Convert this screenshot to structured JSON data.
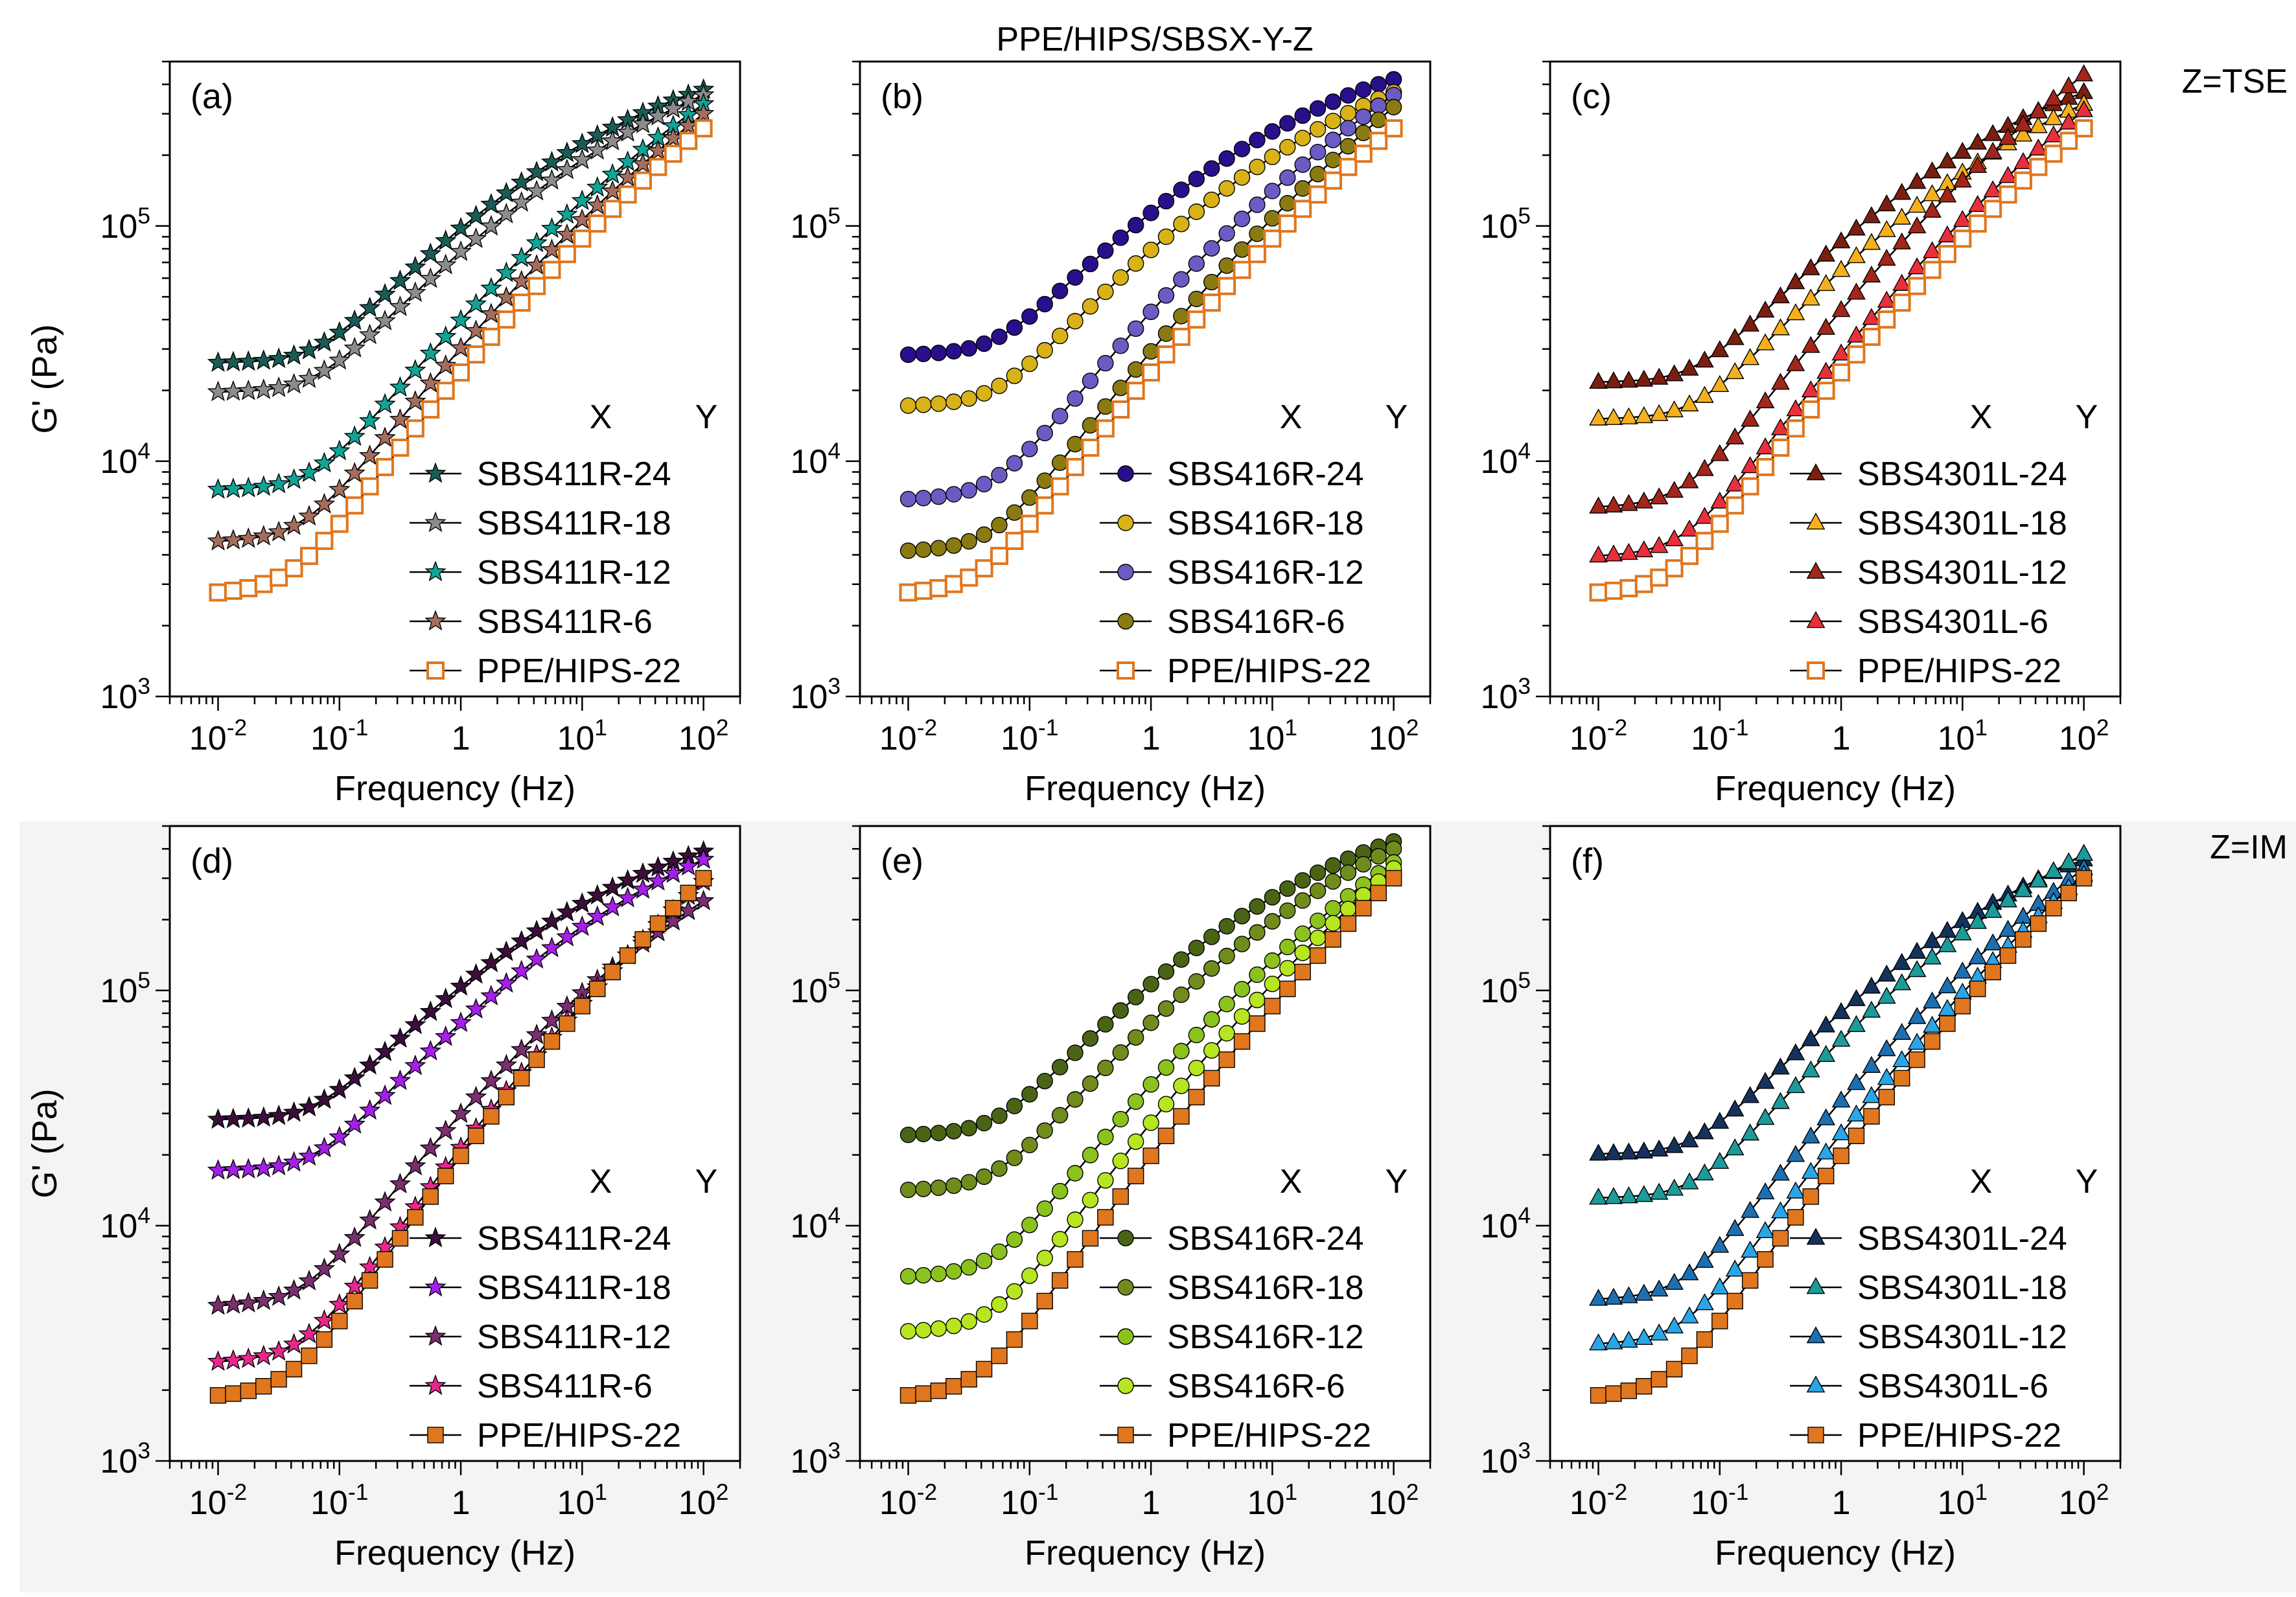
{
  "figure": {
    "title": "PPE/HIPS/SBSX-Y-Z",
    "row_labels": [
      "Z=TSE",
      "Z=IM"
    ],
    "legend_header": {
      "x": "X",
      "y": "Y"
    }
  },
  "chart_data": [
    {
      "type": "line",
      "panel": "(a)",
      "xscale": "log",
      "yscale": "log",
      "xlabel": "Frequency (Hz)",
      "ylabel": "G' (Pa)",
      "xlim": [
        0.004,
        200
      ],
      "ylim": [
        1000,
        500000
      ],
      "xticks": [
        "10-2",
        "10-1",
        "1",
        "101",
        "102"
      ],
      "yticks": [
        "103",
        "104",
        "105"
      ],
      "x": [
        0.01,
        100
      ],
      "legend_position": "bottom-right",
      "series": [
        {
          "name": "SBS411R-24",
          "marker": "star",
          "color": "#1a5c55",
          "open": false,
          "plateau": 26000,
          "end": 380000,
          "corner": 0.06,
          "n": 0.68
        },
        {
          "name": "SBS411R-18",
          "marker": "star",
          "color": "#8c8c8c",
          "open": false,
          "plateau": 19500,
          "end": 360000,
          "corner": 0.06,
          "n": 0.68
        },
        {
          "name": "SBS411R-12",
          "marker": "star",
          "color": "#12a394",
          "open": false,
          "plateau": 7500,
          "end": 330000,
          "corner": 0.06,
          "n": 0.75
        },
        {
          "name": "SBS411R-6",
          "marker": "star",
          "color": "#a56d5d",
          "open": false,
          "plateau": 4500,
          "end": 300000,
          "corner": 0.05,
          "n": 0.78
        },
        {
          "name": "PPE/HIPS-22",
          "marker": "square",
          "color": "#e0761d",
          "open": true,
          "plateau": 2700,
          "end": 260000,
          "corner": 0.04,
          "n": 0.82
        }
      ]
    },
    {
      "type": "line",
      "panel": "(b)",
      "xscale": "log",
      "yscale": "log",
      "xlabel": "Frequency (Hz)",
      "ylabel": "",
      "xlim": [
        0.004,
        200
      ],
      "ylim": [
        1000,
        500000
      ],
      "xticks": [
        "10-2",
        "10-1",
        "1",
        "101",
        "102"
      ],
      "yticks": [
        "103",
        "104",
        "105"
      ],
      "x": [
        0.01,
        100
      ],
      "legend_position": "bottom-right",
      "series": [
        {
          "name": "SBS416R-24",
          "marker": "circle",
          "color": "#2a0f8c",
          "open": false,
          "plateau": 28000,
          "end": 420000,
          "corner": 0.05,
          "n": 0.66
        },
        {
          "name": "SBS416R-18",
          "marker": "circle",
          "color": "#d8b217",
          "open": false,
          "plateau": 17000,
          "end": 370000,
          "corner": 0.05,
          "n": 0.7
        },
        {
          "name": "SBS416R-12",
          "marker": "circle",
          "color": "#6b5cc4",
          "open": false,
          "plateau": 6800,
          "end": 360000,
          "corner": 0.05,
          "n": 0.78
        },
        {
          "name": "SBS416R-6",
          "marker": "circle",
          "color": "#8a7a12",
          "open": false,
          "plateau": 4100,
          "end": 320000,
          "corner": 0.05,
          "n": 0.8
        },
        {
          "name": "PPE/HIPS-22",
          "marker": "square",
          "color": "#e0761d",
          "open": true,
          "plateau": 2700,
          "end": 260000,
          "corner": 0.04,
          "n": 0.82
        }
      ]
    },
    {
      "type": "line",
      "panel": "(c)",
      "xscale": "log",
      "yscale": "log",
      "xlabel": "Frequency (Hz)",
      "ylabel": "",
      "xlim": [
        0.004,
        200
      ],
      "ylim": [
        1000,
        500000
      ],
      "xticks": [
        "10-2",
        "10-1",
        "1",
        "101",
        "102"
      ],
      "yticks": [
        "103",
        "104",
        "105"
      ],
      "x": [
        0.01,
        100
      ],
      "legend_position": "bottom-right",
      "series": [
        {
          "name": "SBS4301L-24",
          "marker": "triangle",
          "color": "#7a1f0f",
          "open": false,
          "plateau": 21500,
          "end": 370000,
          "corner": 0.06,
          "n": 0.7
        },
        {
          "name": "SBS4301L-18",
          "marker": "triangle",
          "color": "#f5b01c",
          "open": false,
          "plateau": 15000,
          "end": 330000,
          "corner": 0.06,
          "n": 0.72
        },
        {
          "name": "SBS4301L-12",
          "marker": "triangle",
          "color": "#a3261a",
          "open": false,
          "plateau": 6300,
          "end": 440000,
          "corner": 0.05,
          "n": 0.8
        },
        {
          "name": "SBS4301L-6",
          "marker": "triangle",
          "color": "#e8303c",
          "open": false,
          "plateau": 3900,
          "end": 310000,
          "corner": 0.05,
          "n": 0.82
        },
        {
          "name": "PPE/HIPS-22",
          "marker": "square",
          "color": "#e0761d",
          "open": true,
          "plateau": 2700,
          "end": 260000,
          "corner": 0.04,
          "n": 0.82
        }
      ]
    },
    {
      "type": "line",
      "panel": "(d)",
      "xscale": "log",
      "yscale": "log",
      "xlabel": "Frequency (Hz)",
      "ylabel": "G' (Pa)",
      "xlim": [
        0.004,
        200
      ],
      "ylim": [
        1000,
        500000
      ],
      "xticks": [
        "10-2",
        "10-1",
        "1",
        "101",
        "102"
      ],
      "yticks": [
        "103",
        "104",
        "105"
      ],
      "x": [
        0.01,
        100
      ],
      "legend_position": "bottom-right",
      "series": [
        {
          "name": "SBS411R-24",
          "marker": "star",
          "color": "#3a0f3a",
          "open": false,
          "plateau": 28000,
          "end": 390000,
          "corner": 0.06,
          "n": 0.68
        },
        {
          "name": "SBS411R-18",
          "marker": "star",
          "color": "#a420e8",
          "open": false,
          "plateau": 17000,
          "end": 360000,
          "corner": 0.06,
          "n": 0.72
        },
        {
          "name": "SBS411R-12",
          "marker": "star",
          "color": "#7a2f6e",
          "open": false,
          "plateau": 4500,
          "end": 240000,
          "corner": 0.05,
          "n": 0.82
        },
        {
          "name": "SBS411R-6",
          "marker": "star",
          "color": "#e8288c",
          "open": false,
          "plateau": 2600,
          "end": 290000,
          "corner": 0.05,
          "n": 0.85
        },
        {
          "name": "PPE/HIPS-22",
          "marker": "square",
          "color": "#e0761d",
          "open": false,
          "plateau": 1850,
          "end": 300000,
          "corner": 0.04,
          "n": 0.87
        }
      ]
    },
    {
      "type": "line",
      "panel": "(e)",
      "xscale": "log",
      "yscale": "log",
      "xlabel": "Frequency (Hz)",
      "ylabel": "",
      "xlim": [
        0.004,
        200
      ],
      "ylim": [
        1000,
        500000
      ],
      "xticks": [
        "10-2",
        "10-1",
        "1",
        "101",
        "102"
      ],
      "yticks": [
        "103",
        "104",
        "105"
      ],
      "x": [
        0.01,
        100
      ],
      "legend_position": "bottom-right",
      "series": [
        {
          "name": "SBS416R-24",
          "marker": "circle",
          "color": "#4a6415",
          "open": false,
          "plateau": 24000,
          "end": 430000,
          "corner": 0.05,
          "n": 0.7
        },
        {
          "name": "SBS416R-18",
          "marker": "circle",
          "color": "#6f8c1d",
          "open": false,
          "plateau": 14000,
          "end": 400000,
          "corner": 0.05,
          "n": 0.74
        },
        {
          "name": "SBS416R-12",
          "marker": "circle",
          "color": "#8cc21e",
          "open": false,
          "plateau": 6000,
          "end": 350000,
          "corner": 0.05,
          "n": 0.8
        },
        {
          "name": "SBS416R-6",
          "marker": "circle",
          "color": "#b6e61f",
          "open": false,
          "plateau": 3500,
          "end": 330000,
          "corner": 0.05,
          "n": 0.84
        },
        {
          "name": "PPE/HIPS-22",
          "marker": "square",
          "color": "#e0761d",
          "open": false,
          "plateau": 1850,
          "end": 300000,
          "corner": 0.04,
          "n": 0.87
        }
      ]
    },
    {
      "type": "line",
      "panel": "(f)",
      "xscale": "log",
      "yscale": "log",
      "xlabel": "Frequency (Hz)",
      "ylabel": "",
      "xlim": [
        0.004,
        200
      ],
      "ylim": [
        1000,
        500000
      ],
      "xticks": [
        "10-2",
        "10-1",
        "1",
        "101",
        "102"
      ],
      "yticks": [
        "103",
        "104",
        "105"
      ],
      "x": [
        0.01,
        100
      ],
      "legend_position": "bottom-right",
      "series": [
        {
          "name": "SBS4301L-24",
          "marker": "triangle",
          "color": "#14325c",
          "open": false,
          "plateau": 20000,
          "end": 360000,
          "corner": 0.06,
          "n": 0.7
        },
        {
          "name": "SBS4301L-18",
          "marker": "triangle",
          "color": "#1d9a9a",
          "open": false,
          "plateau": 13000,
          "end": 380000,
          "corner": 0.06,
          "n": 0.74
        },
        {
          "name": "SBS4301L-12",
          "marker": "triangle",
          "color": "#1e6fb0",
          "open": false,
          "plateau": 4800,
          "end": 330000,
          "corner": 0.05,
          "n": 0.82
        },
        {
          "name": "SBS4301L-6",
          "marker": "triangle",
          "color": "#2aa6e8",
          "open": false,
          "plateau": 3100,
          "end": 310000,
          "corner": 0.05,
          "n": 0.84
        },
        {
          "name": "PPE/HIPS-22",
          "marker": "square",
          "color": "#e0761d",
          "open": false,
          "plateau": 1850,
          "end": 300000,
          "corner": 0.04,
          "n": 0.87
        }
      ]
    }
  ]
}
